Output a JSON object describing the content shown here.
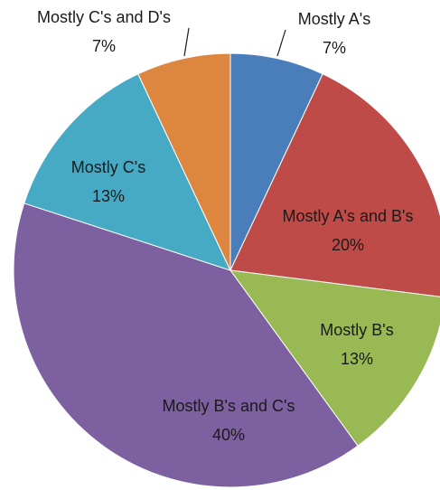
{
  "chart_data": {
    "type": "pie",
    "categories": [
      "Mostly A's",
      "Mostly A's and B's",
      "Mostly B's",
      "Mostly B's and C's",
      "Mostly C's",
      "Mostly C's and D's"
    ],
    "values": [
      7,
      20,
      13,
      40,
      13,
      7
    ],
    "value_labels": [
      "7%",
      "20%",
      "13%",
      "40%",
      "13%",
      "7%"
    ],
    "colors": [
      "#4a7ebb",
      "#be4b48",
      "#98b954",
      "#7d60a0",
      "#46aac5",
      "#dd8640"
    ]
  }
}
